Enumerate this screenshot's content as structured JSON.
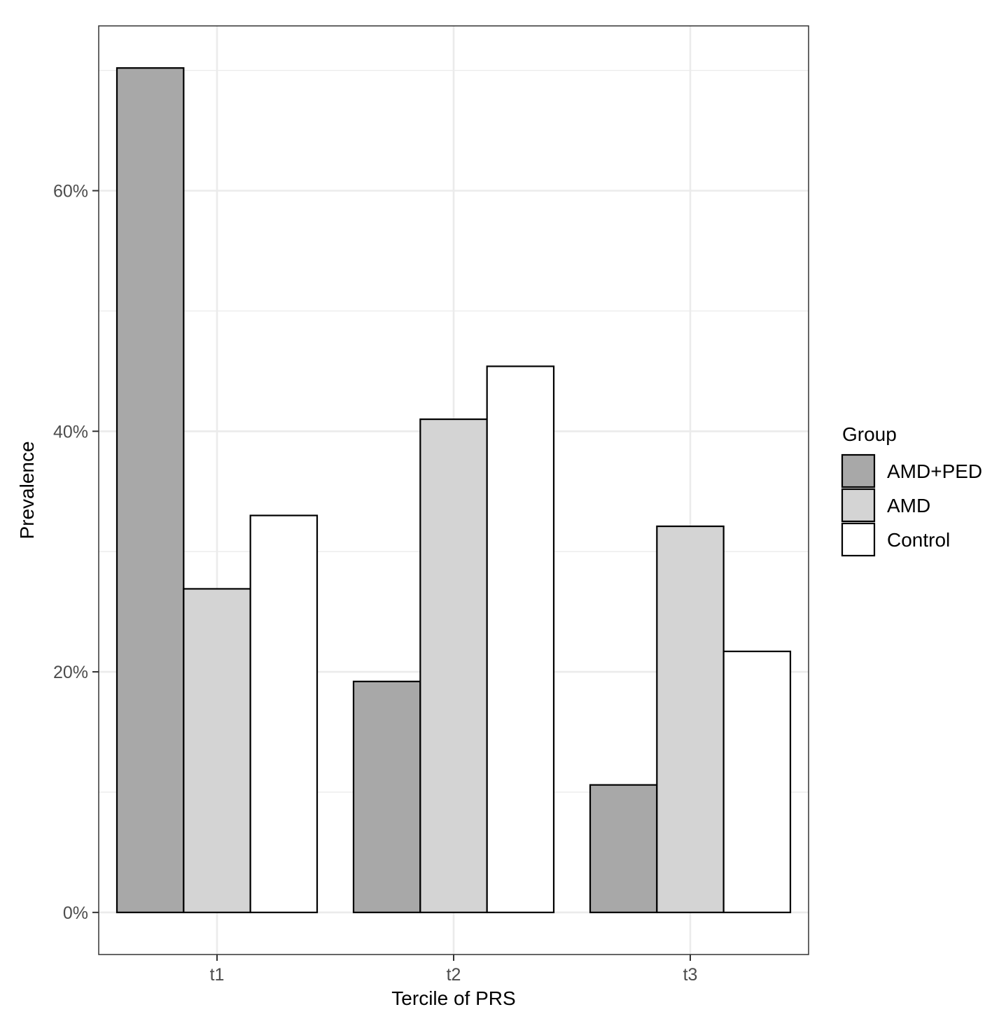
{
  "chart_data": {
    "type": "bar",
    "xlabel": "Tercile of PRS",
    "ylabel": "Prevalence",
    "categories": [
      "t1",
      "t2",
      "t3"
    ],
    "series": [
      {
        "name": "AMD+PED",
        "values": [
          70.2,
          19.2,
          10.6
        ],
        "color": "#a8a8a8"
      },
      {
        "name": "AMD",
        "values": [
          26.9,
          41.0,
          32.1
        ],
        "color": "#d4d4d4"
      },
      {
        "name": "Control",
        "values": [
          33.0,
          45.4,
          21.7
        ],
        "color": "#ffffff"
      }
    ],
    "ylim": [
      -3.5,
      73.7
    ],
    "yticks": [
      0,
      20,
      40,
      60
    ],
    "ytick_labels": [
      "0%",
      "20%",
      "40%",
      "60%"
    ],
    "legend": {
      "title": "Group",
      "position": "right"
    },
    "grid": true,
    "background": "#ffffff",
    "grid_color": "#ebebeb",
    "panel_border_color": "#333333",
    "bar_outline_color": "#000000"
  }
}
